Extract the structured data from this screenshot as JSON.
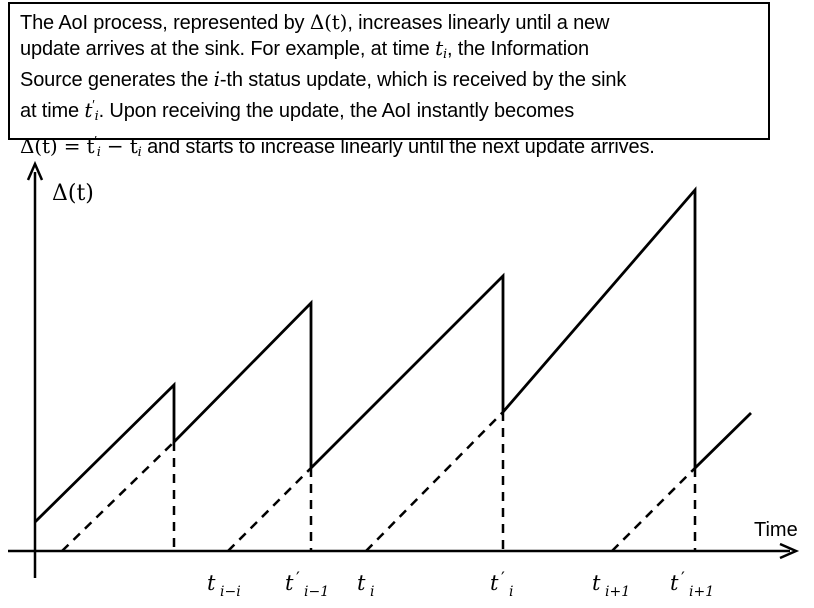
{
  "caption": {
    "line1_a": "The AoI process, represented by ",
    "line1_b": ", increases linearly until a new",
    "line2": "update arrives at the sink. For example, at time ",
    "line2_b": ", the Information",
    "line3_a": "Source generates the ",
    "line3_b": "-th status update, which is received by the sink",
    "line4_a": "at time ",
    "line4_b": ". Upon receiving the update, the AoI instantly becomes",
    "line5_b": " and starts to increase linearly until the next update arrives.",
    "math_delta_t": "Δ(t)",
    "math_ti": "t",
    "math_i": "i",
    "math_prime": "′",
    "math_eq_lhs": "Δ(t) = t",
    "math_eq_minus": " − t"
  },
  "diagram": {
    "y_axis_label": "Δ(t)",
    "x_axis_label": "Time",
    "tick_labels": [
      {
        "id": "t-i-minus-1",
        "base": "t",
        "sub": "i−i",
        "prime": false
      },
      {
        "id": "t-prime-i-minus-1",
        "base": "t",
        "sub": "i−1",
        "prime": true
      },
      {
        "id": "t-i",
        "base": "t",
        "sub": "i",
        "prime": false
      },
      {
        "id": "t-prime-i",
        "base": "t",
        "sub": "i",
        "prime": true
      },
      {
        "id": "t-i-plus-1",
        "base": "t",
        "sub": "i+1",
        "prime": false
      },
      {
        "id": "t-prime-i-plus-1",
        "base": "t",
        "sub": "i+1",
        "prime": true
      }
    ],
    "colors": {
      "stroke": "#000000",
      "background": "#ffffff"
    }
  }
}
